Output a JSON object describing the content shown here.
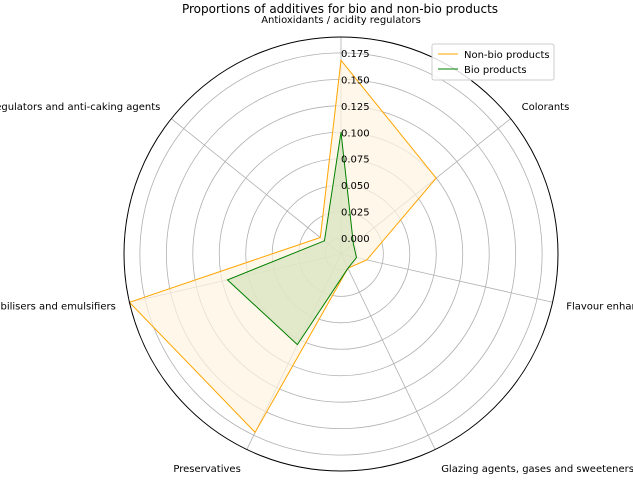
{
  "chart_data": {
    "type": "radar",
    "title": "Proportions of additives for bio and non-bio products",
    "axes": [
      "Antioxidants / acidity regulators",
      "Colorants",
      "Flavour enhancers",
      "Glazing agents, gases and sweeteners",
      "Preservatives",
      "Thickeners, stabilisers and emulsifiers",
      "pH regulators and anti-caking agents"
    ],
    "rlim": [
      -0.015,
      0.19
    ],
    "rticks": [
      0.0,
      0.025,
      0.05,
      0.075,
      0.1,
      0.125,
      0.15,
      0.175
    ],
    "rtick_labels": [
      "0.000",
      "0.025",
      "0.050",
      "0.075",
      "0.100",
      "0.125",
      "0.150",
      "0.175"
    ],
    "grid": true,
    "legend_position": "top-right",
    "series": [
      {
        "name": "Non-bio products",
        "color": "#ffa500",
        "fill": "#fff3e0",
        "values": [
          0.168,
          0.1,
          0.01,
          0.0,
          0.172,
          0.19,
          0.01
        ]
      },
      {
        "name": "Bio products",
        "color": "#008000",
        "fill": "#d6e3bc",
        "values": [
          0.1,
          0.0,
          0.0,
          0.0,
          0.08,
          0.095,
          0.005
        ]
      }
    ]
  }
}
